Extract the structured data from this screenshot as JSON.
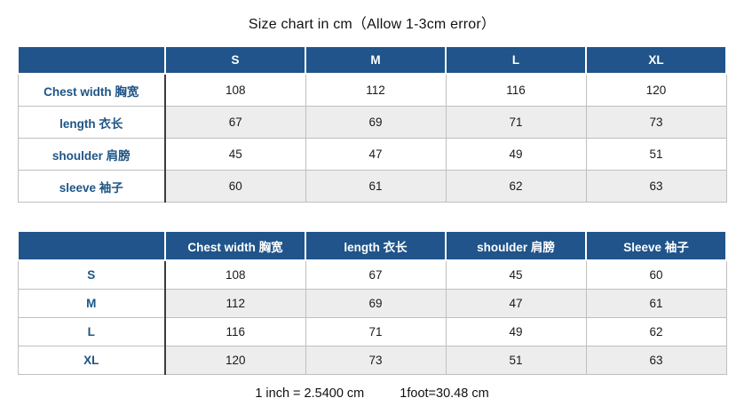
{
  "title": "Size chart in cm（Allow 1-3cm error）",
  "colors": {
    "header_bg": "#20548A",
    "header_text": "#FFFFFF",
    "row_label_text": "#1E5586",
    "row_stripe": "#EDEDED",
    "cell_border": "#BFBFBF",
    "label_divider": "#3D3D3D",
    "body_text": "#1A1A1A"
  },
  "footer": {
    "inch_conversion": "1 inch = 2.5400 cm",
    "foot_conversion": "1foot=30.48 cm"
  },
  "chart_data": [
    {
      "type": "table",
      "name": "size-chart-by-size-columns",
      "title": "Size chart in cm（Allow 1-3cm error）",
      "columns": [
        "",
        "S",
        "M",
        "L",
        "XL"
      ],
      "rows": [
        [
          "Chest width 胸宽",
          "108",
          "112",
          "116",
          "120"
        ],
        [
          "length 衣长",
          "67",
          "69",
          "71",
          "73"
        ],
        [
          "shoulder 肩膀",
          "45",
          "47",
          "49",
          "51"
        ],
        [
          "sleeve 袖子",
          "60",
          "61",
          "62",
          "63"
        ]
      ]
    },
    {
      "type": "table",
      "name": "size-chart-by-measurement-columns",
      "columns": [
        "",
        "Chest width 胸宽",
        "length 衣长",
        "shoulder 肩膀",
        "Sleeve 袖子"
      ],
      "rows": [
        [
          "S",
          "108",
          "67",
          "45",
          "60"
        ],
        [
          "M",
          "112",
          "69",
          "47",
          "61"
        ],
        [
          "L",
          "116",
          "71",
          "49",
          "62"
        ],
        [
          "XL",
          "120",
          "73",
          "51",
          "63"
        ]
      ]
    }
  ]
}
